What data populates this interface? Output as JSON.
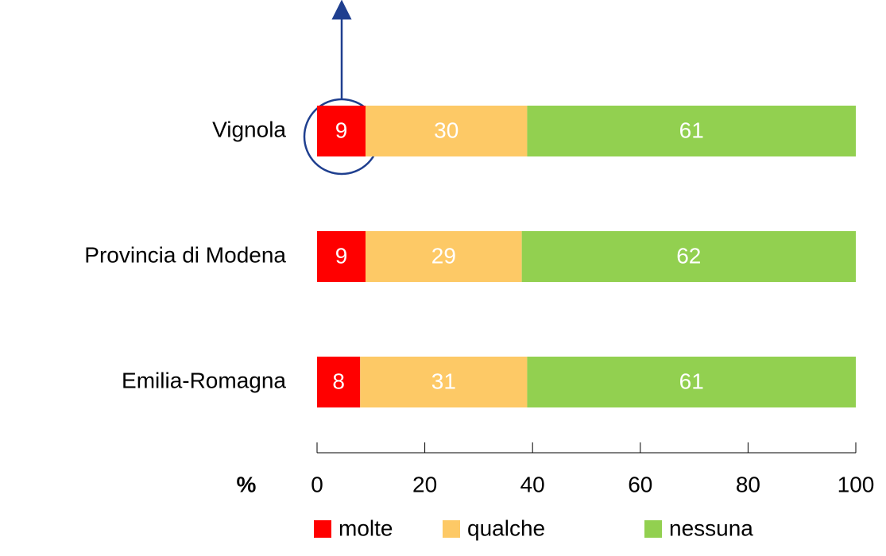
{
  "chart_data": {
    "type": "stacked_bar_horizontal",
    "categories": [
      "Vignola",
      "Provincia di Modena",
      "Emilia-Romagna"
    ],
    "series": [
      {
        "name": "molte",
        "color": "#ff0000",
        "values": [
          9,
          9,
          8
        ]
      },
      {
        "name": "qualche",
        "color": "#fdc966",
        "values": [
          30,
          29,
          31
        ]
      },
      {
        "name": "nessuna",
        "color": "#92d050",
        "values": [
          61,
          62,
          61
        ]
      }
    ],
    "xlabel": "%",
    "xlim": [
      0,
      100
    ],
    "xticks": [
      0,
      20,
      40,
      60,
      80,
      100
    ]
  }
}
